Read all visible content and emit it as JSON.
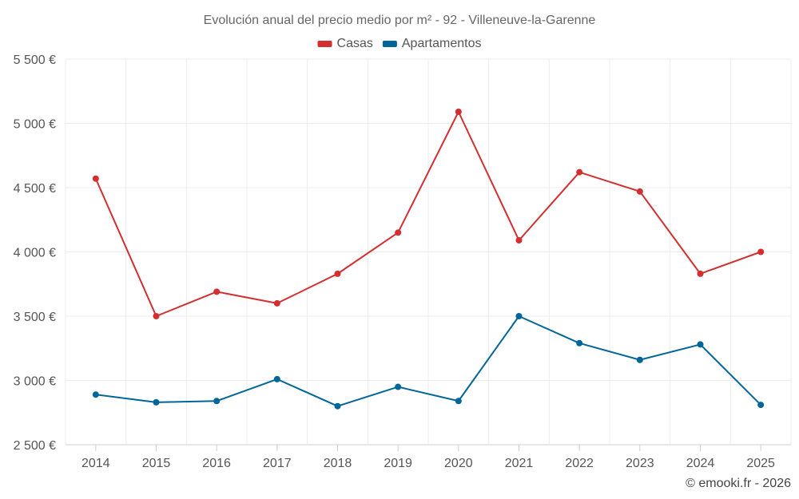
{
  "chart_data": {
    "type": "line",
    "title": "Evolución anual del precio medio por m² - 92 - Villeneuve-la-Garenne",
    "categories": [
      "2014",
      "2015",
      "2016",
      "2017",
      "2018",
      "2019",
      "2020",
      "2021",
      "2022",
      "2023",
      "2024",
      "2025"
    ],
    "series": [
      {
        "name": "Casas",
        "color": "#d32f2f",
        "values": [
          4570,
          3500,
          3690,
          3600,
          3830,
          4150,
          5090,
          4090,
          4620,
          4470,
          3830,
          4000
        ]
      },
      {
        "name": "Apartamentos",
        "color": "#006699",
        "values": [
          2890,
          2830,
          2840,
          3010,
          2800,
          2950,
          2840,
          3500,
          3290,
          3160,
          3280,
          2810
        ]
      }
    ],
    "ylim": [
      2500,
      5500
    ],
    "yticks": [
      2500,
      3000,
      3500,
      4000,
      4500,
      5000,
      5500
    ],
    "ytick_labels": [
      "2 500 €",
      "3 000 €",
      "3 500 €",
      "4 000 €",
      "4 500 €",
      "5 000 €",
      "5 500 €"
    ],
    "xlabel": "",
    "ylabel": "",
    "legend_position": "top-center",
    "grid": true
  },
  "credit": "© emooki.fr - 2026"
}
